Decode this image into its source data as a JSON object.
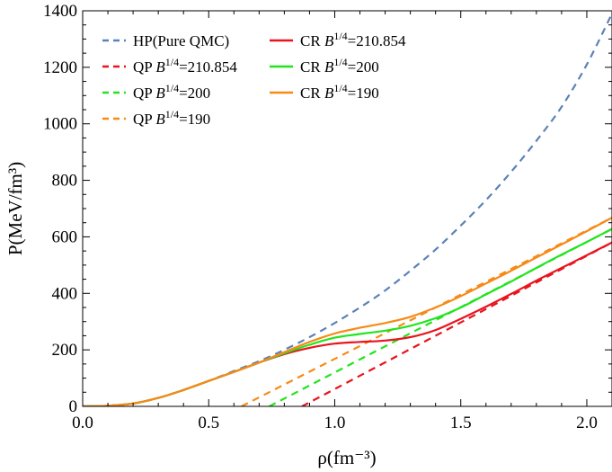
{
  "chart_data": {
    "type": "line",
    "title": "",
    "xlabel": "ρ(fm⁻³)",
    "ylabel": "P(MeV/fm³)",
    "xlim": [
      0.0,
      2.1
    ],
    "ylim": [
      0,
      1400
    ],
    "x_ticks": [
      "0.0",
      "0.5",
      "1.0",
      "1.5",
      "2.0"
    ],
    "y_ticks": [
      "0",
      "200",
      "400",
      "600",
      "800",
      "1000",
      "1200",
      "1400"
    ],
    "x_tick_values": [
      0.0,
      0.5,
      1.0,
      1.5,
      2.0
    ],
    "y_tick_values": [
      0,
      200,
      400,
      600,
      800,
      1000,
      1200,
      1400
    ],
    "grid": false,
    "legend_position": "top-left",
    "series": [
      {
        "name": "HP(Pure QMC)",
        "label_prefix": "HP(Pure QMC)",
        "exponent": "",
        "label_suffix": "",
        "style": "dashed",
        "color": "#5b82b8",
        "x": [
          0.0,
          0.1,
          0.2,
          0.3,
          0.4,
          0.5,
          0.6,
          0.7,
          0.8,
          0.9,
          1.0,
          1.1,
          1.2,
          1.3,
          1.4,
          1.5,
          1.6,
          1.7,
          1.8,
          1.9,
          2.0,
          2.1
        ],
        "y": [
          0,
          2,
          10,
          30,
          58,
          90,
          125,
          160,
          200,
          245,
          295,
          350,
          410,
          480,
          555,
          640,
          730,
          830,
          940,
          1060,
          1210,
          1390
        ]
      },
      {
        "name": "QP B1/4=210.854",
        "label_prefix": "QP ",
        "exponent": "1/4",
        "label_suffix": "=210.854",
        "style": "dashed",
        "color": "#e8141e",
        "x": [
          0.87,
          2.1
        ],
        "y": [
          0,
          580
        ]
      },
      {
        "name": "QP B1/4=200",
        "label_prefix": "QP ",
        "exponent": "1/4",
        "label_suffix": "=200",
        "style": "dashed",
        "color": "#22e41e",
        "x": [
          0.74,
          2.1
        ],
        "y": [
          0,
          628
        ]
      },
      {
        "name": "QP B1/4=190",
        "label_prefix": "QP ",
        "exponent": "1/4",
        "label_suffix": "=190",
        "style": "dashed",
        "color": "#f78a16",
        "x": [
          0.63,
          2.1
        ],
        "y": [
          0,
          668
        ]
      },
      {
        "name": "CR B1/4=210.854",
        "label_prefix": "CR ",
        "exponent": "1/4",
        "label_suffix": "=210.854",
        "style": "solid",
        "color": "#e8141e",
        "x": [
          0.0,
          0.1,
          0.2,
          0.3,
          0.4,
          0.5,
          0.6,
          0.7,
          0.8,
          0.9,
          1.0,
          1.1,
          1.2,
          1.3,
          1.4,
          1.5,
          1.6,
          1.7,
          1.8,
          1.9,
          2.0,
          2.1
        ],
        "y": [
          0,
          2,
          10,
          30,
          58,
          90,
          122,
          155,
          185,
          207,
          222,
          228,
          233,
          245,
          270,
          310,
          353,
          398,
          445,
          490,
          535,
          580
        ]
      },
      {
        "name": "CR B1/4=200",
        "label_prefix": "CR ",
        "exponent": "1/4",
        "label_suffix": "=200",
        "style": "solid",
        "color": "#22e41e",
        "x": [
          0.0,
          0.1,
          0.2,
          0.3,
          0.4,
          0.5,
          0.6,
          0.7,
          0.8,
          0.9,
          1.0,
          1.1,
          1.2,
          1.3,
          1.4,
          1.5,
          1.6,
          1.7,
          1.8,
          1.9,
          2.0,
          2.1
        ],
        "y": [
          0,
          2,
          10,
          30,
          58,
          90,
          122,
          155,
          188,
          218,
          243,
          256,
          268,
          285,
          312,
          350,
          396,
          442,
          490,
          537,
          582,
          628
        ]
      },
      {
        "name": "CR B1/4=190",
        "label_prefix": "CR ",
        "exponent": "1/4",
        "label_suffix": "=190",
        "style": "solid",
        "color": "#f78a16",
        "x": [
          0.0,
          0.1,
          0.2,
          0.3,
          0.4,
          0.5,
          0.6,
          0.7,
          0.8,
          0.9,
          1.0,
          1.1,
          1.2,
          1.3,
          1.4,
          1.5,
          1.6,
          1.7,
          1.8,
          1.9,
          2.0,
          2.1
        ],
        "y": [
          0,
          2,
          10,
          30,
          58,
          90,
          122,
          155,
          192,
          228,
          258,
          278,
          295,
          317,
          350,
          390,
          435,
          480,
          527,
          573,
          620,
          668
        ]
      }
    ]
  }
}
